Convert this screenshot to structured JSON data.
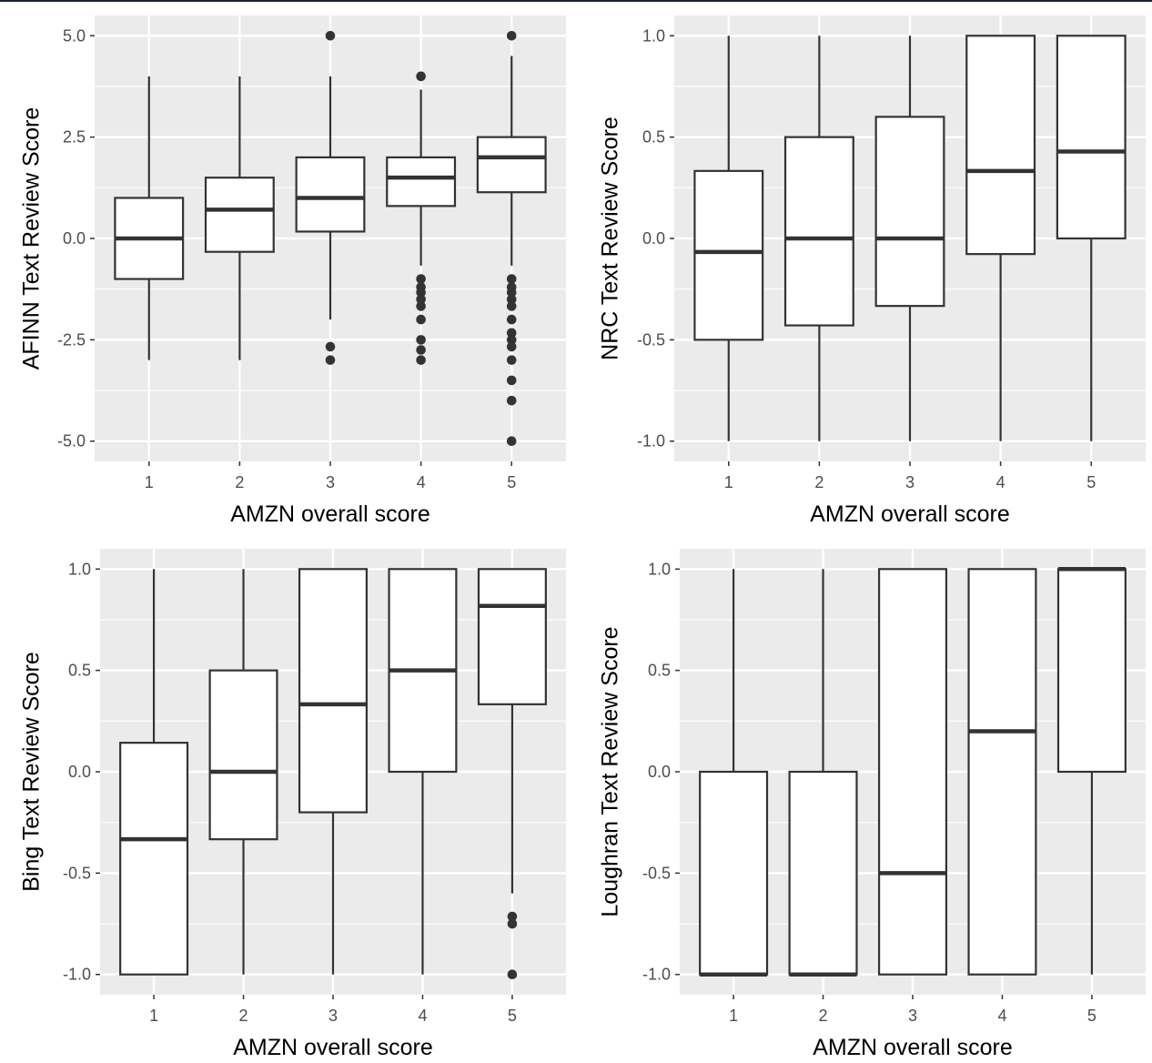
{
  "chart_data": [
    {
      "type": "box",
      "xlabel": "AMZN overall score",
      "ylabel": "AFINN Text Review Score",
      "categories": [
        "1",
        "2",
        "3",
        "4",
        "5"
      ],
      "ylim": [
        -5.5,
        5.5
      ],
      "yticks": [
        -5.0,
        -2.5,
        0.0,
        2.5,
        5.0
      ],
      "ytick_labels": [
        "-5.0",
        "-2.5",
        "0.0",
        "2.5",
        "5.0"
      ],
      "grid": true,
      "boxes": [
        {
          "category": "1",
          "min": -3.0,
          "q1": -1.0,
          "median": 0.0,
          "q3": 1.0,
          "max": 4.0,
          "outliers": []
        },
        {
          "category": "2",
          "min": -3.0,
          "q1": -0.33,
          "median": 0.71,
          "q3": 1.5,
          "max": 4.0,
          "outliers": []
        },
        {
          "category": "3",
          "min": -2.0,
          "q1": 0.17,
          "median": 1.0,
          "q3": 2.0,
          "max": 4.0,
          "outliers": [
            5.0,
            -2.67,
            -3.0
          ]
        },
        {
          "category": "4",
          "min": -0.67,
          "q1": 0.8,
          "median": 1.5,
          "q3": 2.0,
          "max": 3.67,
          "outliers": [
            4.0,
            -1.0,
            -1.2,
            -1.33,
            -1.5,
            -1.67,
            -2.0,
            -2.5,
            -2.75,
            -3.0
          ]
        },
        {
          "category": "5",
          "min": -0.67,
          "q1": 1.14,
          "median": 2.0,
          "q3": 2.5,
          "max": 4.5,
          "outliers": [
            5.0,
            -1.0,
            -1.2,
            -1.33,
            -1.5,
            -1.67,
            -2.0,
            -2.33,
            -2.5,
            -2.67,
            -3.0,
            -3.5,
            -4.0,
            -5.0
          ]
        }
      ]
    },
    {
      "type": "box",
      "xlabel": "AMZN overall score",
      "ylabel": "NRC Text Review Score",
      "categories": [
        "1",
        "2",
        "3",
        "4",
        "5"
      ],
      "ylim": [
        -1.1,
        1.1
      ],
      "yticks": [
        -1.0,
        -0.5,
        0.0,
        0.5,
        1.0
      ],
      "ytick_labels": [
        "-1.0",
        "-0.5",
        "0.0",
        "0.5",
        "1.0"
      ],
      "grid": true,
      "boxes": [
        {
          "category": "1",
          "min": -1.0,
          "q1": -0.5,
          "median": -0.067,
          "q3": 0.333,
          "max": 1.0,
          "outliers": []
        },
        {
          "category": "2",
          "min": -1.0,
          "q1": -0.429,
          "median": 0.0,
          "q3": 0.5,
          "max": 1.0,
          "outliers": []
        },
        {
          "category": "3",
          "min": -1.0,
          "q1": -0.333,
          "median": 0.0,
          "q3": 0.6,
          "max": 1.0,
          "outliers": []
        },
        {
          "category": "4",
          "min": -1.0,
          "q1": -0.077,
          "median": 0.333,
          "q3": 1.0,
          "max": 1.0,
          "outliers": []
        },
        {
          "category": "5",
          "min": -1.0,
          "q1": 0.0,
          "median": 0.429,
          "q3": 1.0,
          "max": 1.0,
          "outliers": []
        }
      ]
    },
    {
      "type": "box",
      "xlabel": "AMZN overall score",
      "ylabel": "Bing Text Review Score",
      "categories": [
        "1",
        "2",
        "3",
        "4",
        "5"
      ],
      "ylim": [
        -1.1,
        1.1
      ],
      "yticks": [
        -1.0,
        -0.5,
        0.0,
        0.5,
        1.0
      ],
      "ytick_labels": [
        "-1.0",
        "-0.5",
        "0.0",
        "0.5",
        "1.0"
      ],
      "grid": true,
      "boxes": [
        {
          "category": "1",
          "min": -1.0,
          "q1": -1.0,
          "median": -0.333,
          "q3": 0.143,
          "max": 1.0,
          "outliers": []
        },
        {
          "category": "2",
          "min": -1.0,
          "q1": -0.333,
          "median": 0.0,
          "q3": 0.5,
          "max": 1.0,
          "outliers": []
        },
        {
          "category": "3",
          "min": -1.0,
          "q1": -0.2,
          "median": 0.333,
          "q3": 1.0,
          "max": 1.0,
          "outliers": []
        },
        {
          "category": "4",
          "min": -1.0,
          "q1": 0.0,
          "median": 0.5,
          "q3": 1.0,
          "max": 1.0,
          "outliers": []
        },
        {
          "category": "5",
          "min": -0.6,
          "q1": 0.333,
          "median": 0.818,
          "q3": 1.0,
          "max": 1.0,
          "outliers": [
            -0.714,
            -0.75,
            -1.0
          ]
        }
      ]
    },
    {
      "type": "box",
      "xlabel": "AMZN overall score",
      "ylabel": "Loughran Text Review Score",
      "categories": [
        "1",
        "2",
        "3",
        "4",
        "5"
      ],
      "ylim": [
        -1.1,
        1.1
      ],
      "yticks": [
        -1.0,
        -0.5,
        0.0,
        0.5,
        1.0
      ],
      "ytick_labels": [
        "-1.0",
        "-0.5",
        "0.0",
        "0.5",
        "1.0"
      ],
      "grid": true,
      "boxes": [
        {
          "category": "1",
          "min": -1.0,
          "q1": -1.0,
          "median": -1.0,
          "q3": 0.0,
          "max": 1.0,
          "outliers": []
        },
        {
          "category": "2",
          "min": -1.0,
          "q1": -1.0,
          "median": -1.0,
          "q3": 0.0,
          "max": 1.0,
          "outliers": []
        },
        {
          "category": "3",
          "min": -1.0,
          "q1": -1.0,
          "median": -0.5,
          "q3": 1.0,
          "max": 1.0,
          "outliers": []
        },
        {
          "category": "4",
          "min": -1.0,
          "q1": -1.0,
          "median": 0.2,
          "q3": 1.0,
          "max": 1.0,
          "outliers": []
        },
        {
          "category": "5",
          "min": -1.0,
          "q1": 0.0,
          "median": 1.0,
          "q3": 1.0,
          "max": 1.0,
          "outliers": []
        }
      ]
    }
  ]
}
